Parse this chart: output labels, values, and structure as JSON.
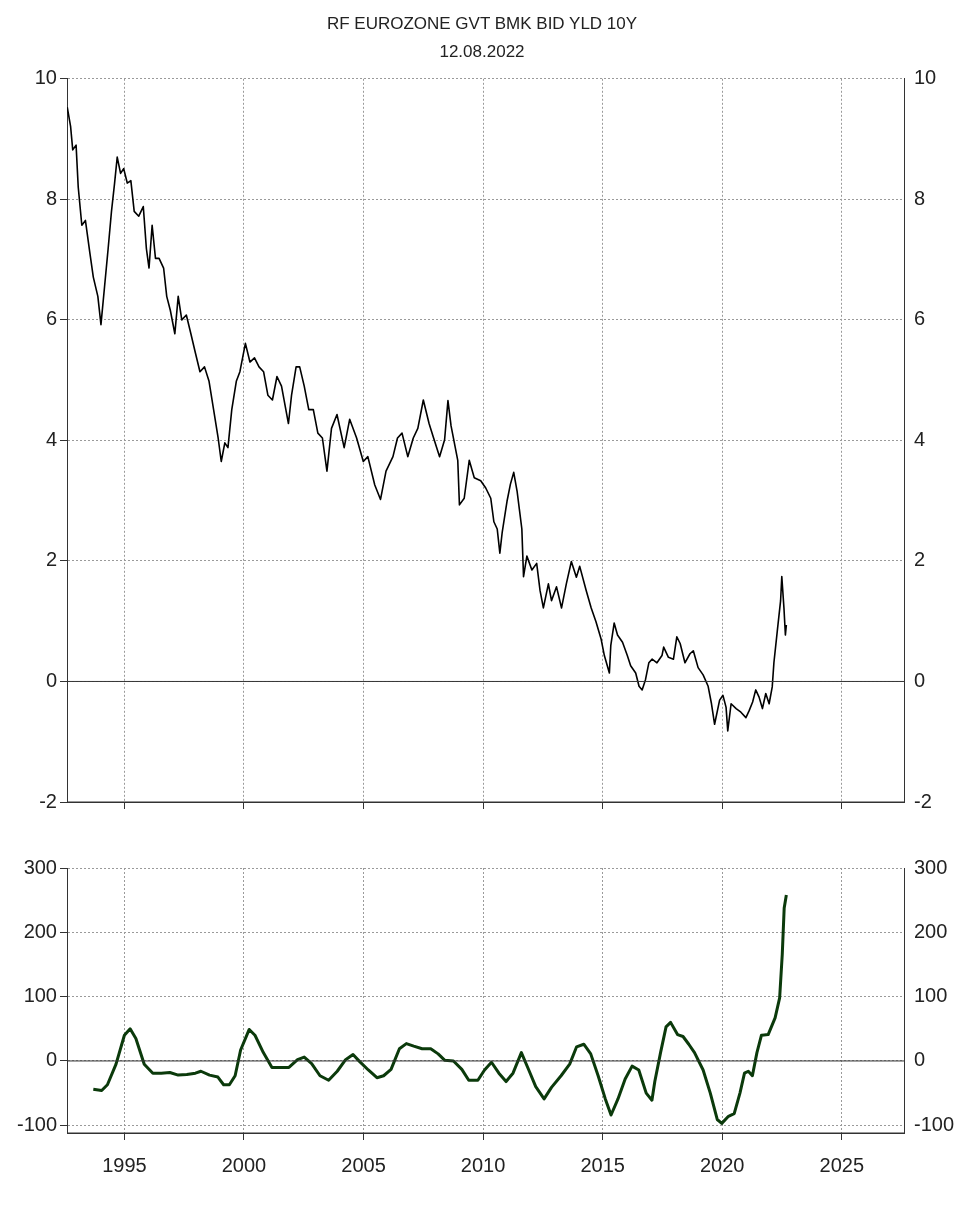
{
  "chart_data": [
    {
      "type": "line",
      "title": "RF EUROZONE GVT BMK BID YLD 10Y",
      "subtitle": "12.08.2022",
      "series": [
        {
          "color": "#000000",
          "x": [
            1992.61,
            1992.75,
            1992.84,
            1992.98,
            1993.07,
            1993.22,
            1993.37,
            1993.56,
            1993.7,
            1993.89,
            1994.02,
            1994.17,
            1994.32,
            1994.46,
            1994.59,
            1994.7,
            1994.84,
            1994.97,
            1995.12,
            1995.27,
            1995.41,
            1995.6,
            1995.79,
            1995.92,
            1996.03,
            1996.16,
            1996.3,
            1996.45,
            1996.64,
            1996.77,
            1996.92,
            1997.11,
            1997.25,
            1997.4,
            1997.59,
            1997.78,
            1997.97,
            1998.16,
            1998.35,
            1998.54,
            1998.73,
            1998.92,
            1999.05,
            1999.2,
            1999.33,
            1999.49,
            1999.68,
            1999.83,
            2000.06,
            2000.25,
            2000.44,
            2000.63,
            2000.82,
            2001.0,
            2001.19,
            2001.38,
            2001.57,
            2001.86,
            2001.99,
            2002.18,
            2002.33,
            2002.52,
            2002.71,
            2002.9,
            2003.09,
            2003.28,
            2003.47,
            2003.66,
            2003.89,
            2004.19,
            2004.42,
            2004.71,
            2004.99,
            2005.18,
            2005.47,
            2005.71,
            2005.94,
            2006.23,
            2006.42,
            2006.61,
            2006.85,
            2007.08,
            2007.27,
            2007.5,
            2007.74,
            2007.93,
            2008.18,
            2008.39,
            2008.53,
            2008.66,
            2008.94,
            2009.01,
            2009.21,
            2009.42,
            2009.63,
            2009.9,
            2010.11,
            2010.32,
            2010.45,
            2010.59,
            2010.7,
            2010.8,
            2011.0,
            2011.14,
            2011.28,
            2011.42,
            2011.62,
            2011.69,
            2011.83,
            2012.04,
            2012.24,
            2012.38,
            2012.52,
            2012.73,
            2012.86,
            2013.07,
            2013.28,
            2013.48,
            2013.69,
            2013.9,
            2014.04,
            2014.31,
            2014.52,
            2014.72,
            2014.93,
            2015.07,
            2015.28,
            2015.34,
            2015.48,
            2015.62,
            2015.83,
            2016.03,
            2016.17,
            2016.38,
            2016.52,
            2016.65,
            2016.79,
            2016.93,
            2017.07,
            2017.27,
            2017.48,
            2017.55,
            2017.75,
            2017.96,
            2018.1,
            2018.24,
            2018.44,
            2018.65,
            2018.79,
            2018.99,
            2019.2,
            2019.41,
            2019.55,
            2019.68,
            2019.89,
            2020.03,
            2020.16,
            2020.23,
            2020.37,
            2020.58,
            2020.78,
            2020.99,
            2021.13,
            2021.27,
            2021.4,
            2021.54,
            2021.68,
            2021.82,
            2021.96,
            2022.09,
            2022.16,
            2022.3,
            2022.44,
            2022.49,
            2022.58,
            2022.64,
            2022.68
          ],
          "values": [
            9.53,
            9.21,
            8.82,
            8.9,
            8.2,
            7.57,
            7.65,
            7.1,
            6.71,
            6.39,
            5.92,
            6.55,
            7.18,
            7.8,
            8.27,
            8.7,
            8.43,
            8.51,
            8.27,
            8.31,
            7.8,
            7.72,
            7.88,
            7.18,
            6.86,
            7.57,
            7.02,
            7.02,
            6.86,
            6.39,
            6.16,
            5.77,
            6.39,
            6.0,
            6.08,
            5.77,
            5.45,
            5.14,
            5.22,
            4.98,
            4.51,
            4.04,
            3.65,
            3.96,
            3.88,
            4.51,
            4.98,
            5.14,
            5.61,
            5.3,
            5.37,
            5.22,
            5.14,
            4.75,
            4.67,
            5.06,
            4.9,
            4.28,
            4.75,
            5.22,
            5.22,
            4.9,
            4.51,
            4.51,
            4.12,
            4.04,
            3.49,
            4.2,
            4.43,
            3.88,
            4.35,
            4.04,
            3.65,
            3.73,
            3.26,
            3.02,
            3.49,
            3.73,
            4.04,
            4.12,
            3.73,
            4.04,
            4.2,
            4.67,
            4.28,
            4.04,
            3.73,
            4.01,
            4.66,
            4.24,
            3.67,
            2.93,
            3.04,
            3.67,
            3.38,
            3.33,
            3.21,
            3.04,
            2.65,
            2.53,
            2.13,
            2.48,
            2.99,
            3.27,
            3.47,
            3.16,
            2.53,
            1.74,
            2.08,
            1.85,
            1.96,
            1.51,
            1.22,
            1.62,
            1.34,
            1.57,
            1.22,
            1.62,
            1.99,
            1.73,
            1.91,
            1.51,
            1.22,
            0.99,
            0.71,
            0.43,
            0.14,
            0.6,
            0.97,
            0.77,
            0.65,
            0.43,
            0.26,
            0.14,
            -0.08,
            -0.14,
            0.03,
            0.31,
            0.37,
            0.31,
            0.43,
            0.57,
            0.4,
            0.37,
            0.74,
            0.63,
            0.31,
            0.46,
            0.51,
            0.23,
            0.11,
            -0.08,
            -0.37,
            -0.71,
            -0.31,
            -0.23,
            -0.43,
            -0.82,
            -0.37,
            -0.45,
            -0.51,
            -0.6,
            -0.48,
            -0.34,
            -0.14,
            -0.26,
            -0.45,
            -0.2,
            -0.37,
            -0.09,
            0.31,
            0.83,
            1.34,
            1.74,
            1.22,
            0.77,
            0.94
          ]
        }
      ],
      "xlim": [
        1992.6,
        2027.6
      ],
      "xticks": [
        1995,
        2000,
        2005,
        2010,
        2015,
        2020,
        2025
      ],
      "ylim": [
        -2,
        10
      ],
      "yticks": [
        -2,
        0,
        2,
        4,
        6,
        8,
        10
      ],
      "y2lim": [
        -2,
        10
      ],
      "y2ticks": [
        -2,
        0,
        2,
        4,
        6,
        8,
        10
      ],
      "ref_lines": [
        {
          "axis": "y",
          "value": 0,
          "color": "#333333"
        }
      ],
      "grid": true,
      "legend": false,
      "tick_labels": "y",
      "marker": "none",
      "line_style": "solid"
    },
    {
      "type": "line",
      "series": [
        {
          "color": "#0b3a0b",
          "x": [
            1993.7,
            1994.05,
            1994.29,
            1994.65,
            1995.0,
            1995.24,
            1995.48,
            1995.83,
            1996.19,
            1996.54,
            1996.9,
            1997.25,
            1997.61,
            1997.97,
            1998.2,
            1998.56,
            1998.91,
            1999.15,
            1999.39,
            1999.63,
            1999.86,
            2000.22,
            2000.46,
            2000.81,
            2001.17,
            2001.52,
            2001.88,
            2002.24,
            2002.52,
            2002.83,
            2003.18,
            2003.54,
            2003.9,
            2004.25,
            2004.56,
            2004.84,
            2005.2,
            2005.56,
            2005.84,
            2006.15,
            2006.5,
            2006.79,
            2007.1,
            2007.45,
            2007.81,
            2008.12,
            2008.4,
            2008.76,
            2009.11,
            2009.4,
            2009.78,
            2010.06,
            2010.35,
            2010.66,
            2010.96,
            2011.25,
            2011.6,
            2011.91,
            2012.2,
            2012.55,
            2012.86,
            2013.26,
            2013.62,
            2013.91,
            2014.21,
            2014.5,
            2014.81,
            2015.11,
            2015.35,
            2015.64,
            2015.94,
            2016.23,
            2016.51,
            2016.82,
            2017.06,
            2017.18,
            2017.42,
            2017.65,
            2017.84,
            2018.13,
            2018.36,
            2018.6,
            2018.84,
            2019.2,
            2019.5,
            2019.79,
            2019.98,
            2020.26,
            2020.5,
            2020.74,
            2020.93,
            2021.09,
            2021.26,
            2021.45,
            2021.64,
            2021.92,
            2022.21,
            2022.4,
            2022.51,
            2022.59,
            2022.68
          ],
          "values": [
            -44,
            -46,
            -37,
            -5,
            40,
            50,
            35,
            -5,
            -19,
            -19,
            -18,
            -22,
            -21,
            -19,
            -16,
            -22,
            -25,
            -37,
            -37,
            -23,
            17,
            49,
            40,
            13,
            -10,
            -10,
            -10,
            2,
            6,
            -4,
            -23,
            -30,
            -16,
            2,
            10,
            -1,
            -14,
            -26,
            -23,
            -13,
            19,
            27,
            23,
            19,
            19,
            11,
            1,
            0,
            -13,
            -30,
            -30,
            -14,
            -2,
            -19,
            -32,
            -19,
            13,
            -14,
            -40,
            -59,
            -41,
            -23,
            -5,
            22,
            26,
            11,
            -23,
            -59,
            -84,
            -59,
            -28,
            -8,
            -14,
            -50,
            -61,
            -32,
            13,
            53,
            60,
            41,
            38,
            26,
            13,
            -14,
            -50,
            -91,
            -97,
            -86,
            -82,
            -50,
            -19,
            -16,
            -23,
            13,
            40,
            41,
            67,
            98,
            166,
            238,
            258
          ]
        }
      ],
      "xlim": [
        1992.6,
        2027.6
      ],
      "xticks": [
        1995,
        2000,
        2005,
        2010,
        2015,
        2020,
        2025
      ],
      "ylim": [
        -112,
        300
      ],
      "yticks": [
        -100,
        0,
        100,
        200,
        300
      ],
      "y2lim": [
        -112,
        300
      ],
      "y2ticks": [
        -100,
        0,
        100,
        200,
        300
      ],
      "ref_lines": [
        {
          "axis": "y",
          "value": 0,
          "color": "#333333"
        }
      ],
      "grid": true,
      "legend": false,
      "marker": "none",
      "line_style": "solid"
    }
  ]
}
